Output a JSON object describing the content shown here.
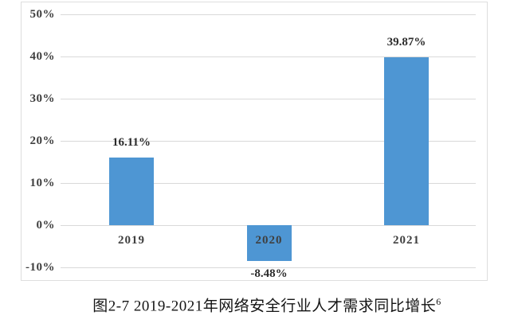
{
  "chart_data": {
    "type": "bar",
    "title": "",
    "xlabel": "",
    "ylabel": "",
    "categories": [
      "2019",
      "2020",
      "2021"
    ],
    "values": [
      16.11,
      -8.48,
      39.87
    ],
    "value_labels": [
      "16.11%",
      "-8.48%",
      "39.87%"
    ],
    "ylim": [
      -10,
      50
    ],
    "yticks": [
      50,
      40,
      30,
      20,
      10,
      0,
      -10
    ],
    "ytick_labels": [
      "50%",
      "40%",
      "30%",
      "20%",
      "10%",
      "0%",
      "-10%"
    ],
    "grid": "horizontal",
    "legend_position": "none"
  },
  "caption": {
    "text": "图2-7 2019-2021年网络安全行业人才需求同比增长",
    "footnote_superscript": "6"
  },
  "colors": {
    "bar": "#4E96D3",
    "gridline": "#D9D9D9",
    "frame_border": "#DEDEDE",
    "axis_text": "#3F3F3F",
    "value_text": "#2B2B2B",
    "background": "#FFFFFF"
  }
}
